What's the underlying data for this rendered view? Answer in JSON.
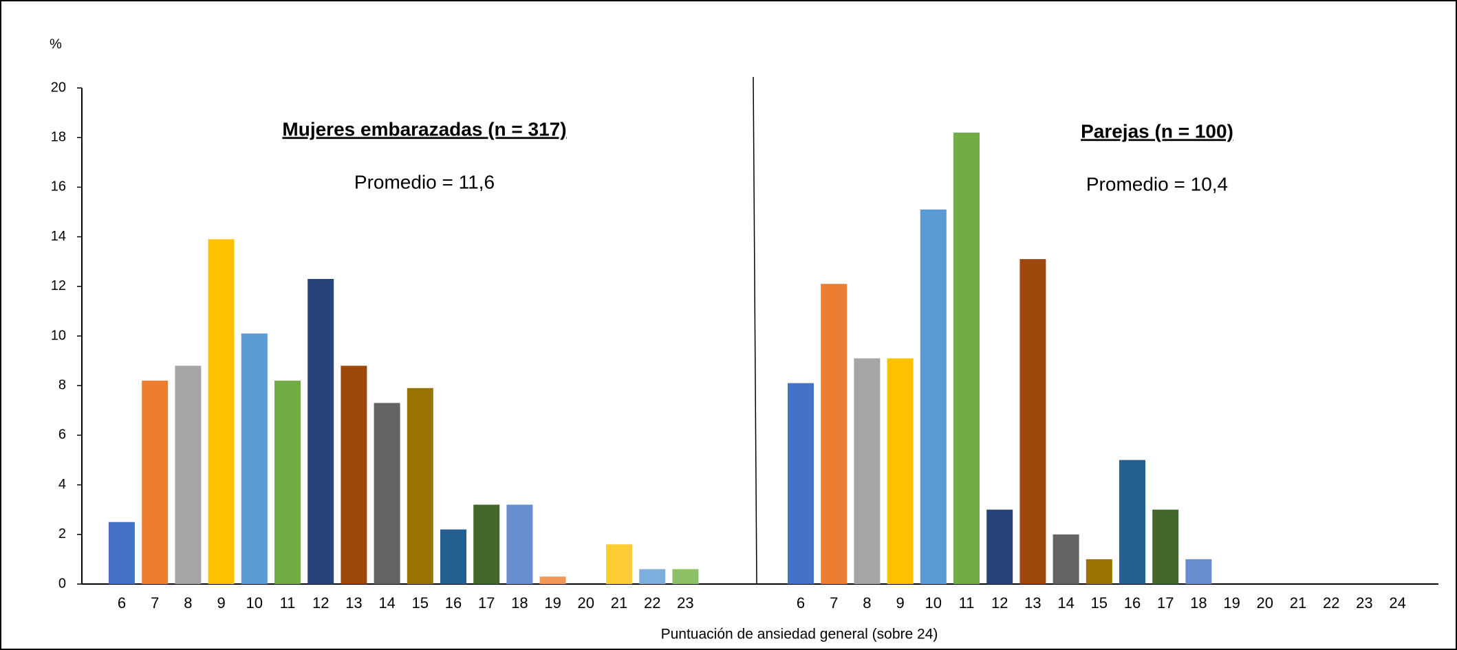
{
  "chart_data": [
    {
      "type": "bar",
      "title": "Mujeres embarazadas (n = 317)",
      "subtitle": "Promedio = 11,6",
      "y_label": "%",
      "x_label": "Puntuación de ansiedad general (sobre 24)",
      "ylim": [
        0,
        20
      ],
      "yticks": [
        0,
        2,
        4,
        6,
        8,
        10,
        12,
        14,
        16,
        18,
        20
      ],
      "categories": [
        "6",
        "7",
        "8",
        "9",
        "10",
        "11",
        "12",
        "13",
        "14",
        "15",
        "16",
        "17",
        "18",
        "19",
        "20",
        "21",
        "22",
        "23"
      ],
      "values": [
        2.5,
        8.2,
        8.8,
        13.9,
        10.1,
        8.2,
        12.3,
        8.8,
        7.3,
        7.9,
        2.2,
        3.2,
        3.2,
        0.3,
        0,
        1.6,
        0.6,
        0.6
      ],
      "colors": [
        "#4472c4",
        "#ed7d31",
        "#a5a5a5",
        "#ffc000",
        "#5b9bd5",
        "#70ad47",
        "#264478",
        "#9e480e",
        "#636363",
        "#997300",
        "#255e91",
        "#43682b",
        "#698ed0",
        "#f1975a",
        "#b7b7b7",
        "#ffcd33",
        "#7cafdd",
        "#8cc168"
      ]
    },
    {
      "type": "bar",
      "title": "Parejas (n = 100)",
      "subtitle": "Promedio = 10,4",
      "ylim": [
        0,
        20
      ],
      "categories": [
        "6",
        "7",
        "8",
        "9",
        "10",
        "11",
        "12",
        "13",
        "14",
        "15",
        "16",
        "17",
        "18",
        "19",
        "20",
        "21",
        "22",
        "23",
        "24"
      ],
      "values": [
        8.1,
        12.1,
        9.1,
        9.1,
        15.1,
        18.2,
        3.0,
        13.1,
        2.0,
        1.0,
        5.0,
        3.0,
        1.0,
        0,
        0,
        0,
        0,
        0,
        0
      ],
      "colors": [
        "#4472c4",
        "#ed7d31",
        "#a5a5a5",
        "#ffc000",
        "#5b9bd5",
        "#70ad47",
        "#264478",
        "#9e480e",
        "#636363",
        "#997300",
        "#255e91",
        "#43682b",
        "#698ed0",
        "#f1975a",
        "#b7b7b7",
        "#ffcd33",
        "#7cafdd",
        "#8cc168",
        "#4472c4"
      ]
    }
  ]
}
